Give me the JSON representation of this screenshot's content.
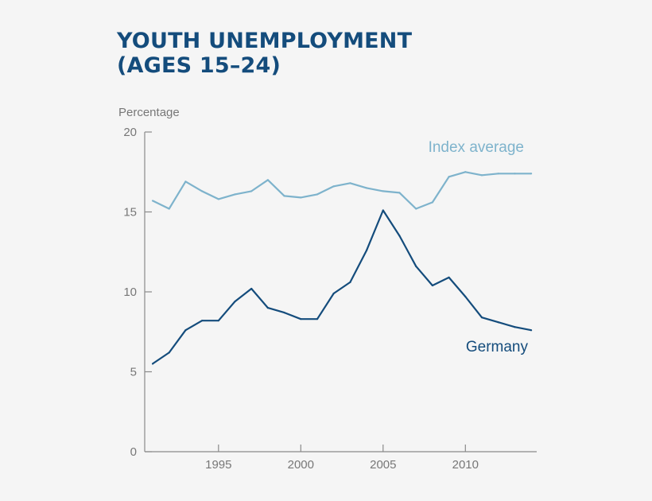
{
  "title_line1": "YOUTH UNEMPLOYMENT",
  "title_line2": "(AGES 15–24)",
  "chart_data": {
    "type": "line",
    "ylabel": "Percentage",
    "ylim": [
      0,
      20
    ],
    "xlim": [
      1990.5,
      2013.5
    ],
    "yticks": [
      0,
      5,
      10,
      15,
      20
    ],
    "xticks": [
      1995,
      2000,
      2005,
      2010
    ],
    "grid": false,
    "x": [
      1991,
      1992,
      1993,
      1994,
      1995,
      1996,
      1997,
      1998,
      1999,
      2000,
      2001,
      2002,
      2003,
      2004,
      2005,
      2006,
      2007,
      2008,
      2009,
      2010,
      2011,
      2012,
      2013,
      2014
    ],
    "series": [
      {
        "name": "Index average",
        "color": "#7eb3cc",
        "values": [
          15.7,
          15.2,
          16.9,
          16.3,
          15.8,
          16.1,
          16.3,
          17.0,
          16.0,
          15.9,
          16.1,
          16.6,
          16.8,
          16.5,
          16.3,
          16.2,
          15.2,
          15.6,
          17.2,
          17.5,
          17.3,
          17.4,
          17.4,
          17.4
        ]
      },
      {
        "name": "Germany",
        "color": "#144c7c",
        "values": [
          5.5,
          6.2,
          7.6,
          8.2,
          8.2,
          9.4,
          10.2,
          9.0,
          8.7,
          8.3,
          8.3,
          9.9,
          10.6,
          12.6,
          15.1,
          13.5,
          11.6,
          10.4,
          10.9,
          9.7,
          8.4,
          8.1,
          7.8,
          7.6
        ]
      }
    ]
  }
}
